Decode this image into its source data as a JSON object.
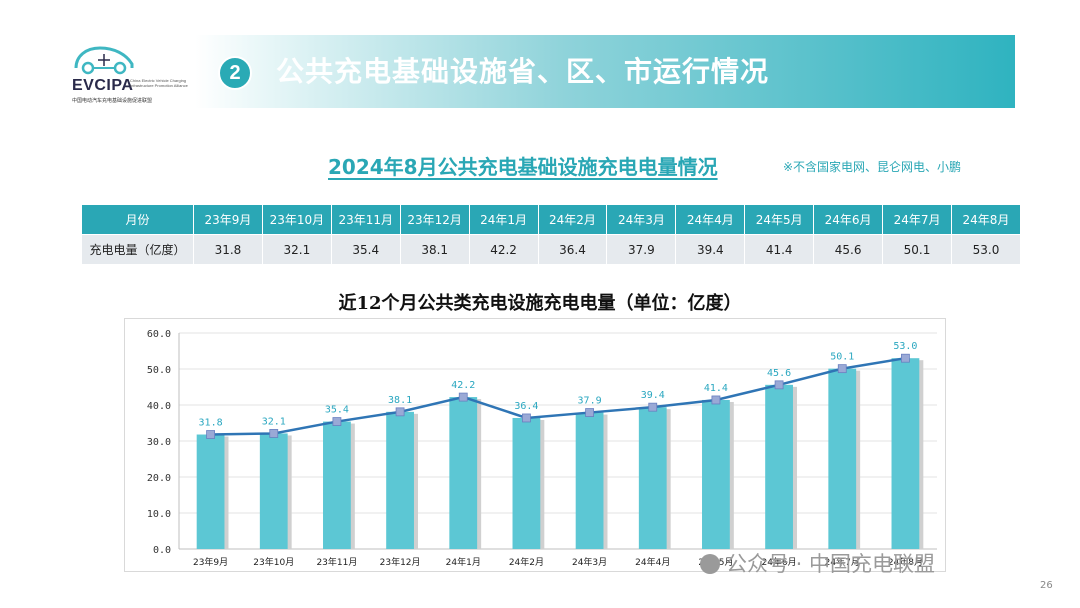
{
  "header": {
    "logo_text": "EVCIPA",
    "logo_subtitle": "China Electric Vehicle Charging Infrastructure Promotion Alliance",
    "logo_cn": "中国电动汽车充电基础设施促进联盟",
    "section_number": "2",
    "section_title": "公共充电基础设施省、区、市运行情况"
  },
  "subtitle": "2024年8月公共充电基础设施充电电量情况",
  "note": "※不含国家电网、昆仑网电、小鹏",
  "table": {
    "month_header": "月份",
    "row_header": "充电电量（亿度）",
    "months": [
      "23年9月",
      "23年10月",
      "23年11月",
      "23年12月",
      "24年1月",
      "24年2月",
      "24年3月",
      "24年4月",
      "24年5月",
      "24年6月",
      "24年7月",
      "24年8月"
    ],
    "values": [
      "31.8",
      "32.1",
      "35.4",
      "38.1",
      "42.2",
      "36.4",
      "37.9",
      "39.4",
      "41.4",
      "45.6",
      "50.1",
      "53.0"
    ]
  },
  "chart_data": {
    "type": "bar",
    "title": "近12个月公共类充电设施充电电量（单位：亿度）",
    "categories": [
      "23年9月",
      "23年10月",
      "23年11月",
      "23年12月",
      "24年1月",
      "24年2月",
      "24年3月",
      "24年4月",
      "24年5月",
      "24年6月",
      "24年7月",
      "24年8月"
    ],
    "series": [
      {
        "type": "bar",
        "values": [
          31.8,
          32.1,
          35.4,
          38.1,
          42.2,
          36.4,
          37.9,
          39.4,
          41.4,
          45.6,
          50.1,
          53.0
        ]
      },
      {
        "type": "line",
        "values": [
          31.8,
          32.1,
          35.4,
          38.1,
          42.2,
          36.4,
          37.9,
          39.4,
          41.4,
          45.6,
          50.1,
          53.0
        ]
      }
    ],
    "data_labels": [
      "31.8",
      "32.1",
      "35.4",
      "38.1",
      "42.2",
      "36.4",
      "37.9",
      "39.4",
      "41.4",
      "45.6",
      "50.1",
      "53.0"
    ],
    "ylim": [
      0,
      60
    ],
    "yticks": [
      "0.0",
      "10.0",
      "20.0",
      "30.0",
      "40.0",
      "50.0",
      "60.0"
    ],
    "grid": true,
    "colors": {
      "bar": "#5cc7d4",
      "bar_shadow": "#d0d0d0",
      "line": "#2f75b5",
      "marker": "#9aa9d6",
      "label": "#2aa7c0",
      "accent": "#2aa7b5"
    }
  },
  "footer": {
    "page_number": "26",
    "watermark": "公众号 · 中国充电联盟"
  }
}
